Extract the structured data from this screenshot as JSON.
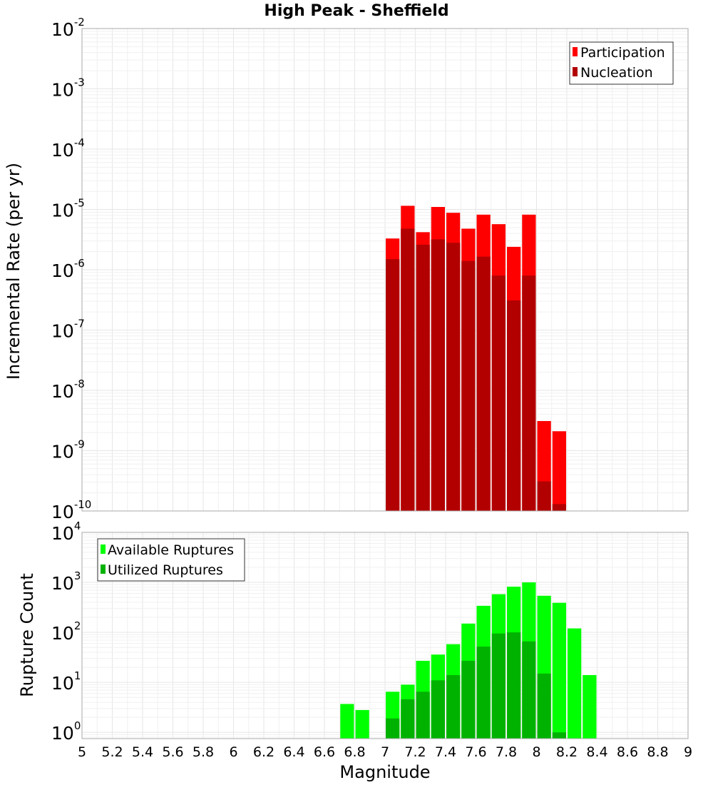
{
  "title": "High Peak - Sheffield",
  "chart_data": [
    {
      "type": "bar",
      "id": "rate",
      "ylabel": "Incremental Rate (per yr)",
      "yscale": "log",
      "ylim": [
        1e-10,
        0.01
      ],
      "xlim": [
        5,
        9
      ],
      "grid": true,
      "legend_position": "top-right",
      "x": [
        7.0,
        7.1,
        7.2,
        7.3,
        7.4,
        7.5,
        7.6,
        7.7,
        7.8,
        7.9,
        8.0,
        8.1
      ],
      "series": [
        {
          "name": "Participation",
          "color": "#ff0000",
          "values": [
            3.3e-06,
            1.15e-05,
            4.2e-06,
            1.1e-05,
            8.8e-06,
            4.8e-06,
            8.2e-06,
            5.7e-06,
            2.4e-06,
            8.2e-06,
            3.1e-09,
            2.1e-09
          ]
        },
        {
          "name": "Nucleation",
          "color": "#b20000",
          "values": [
            1.5e-06,
            4.8e-06,
            2.6e-06,
            3.2e-06,
            2.8e-06,
            1.4e-06,
            1.65e-06,
            8e-07,
            3.1e-07,
            8e-07,
            3.1e-10,
            1.3e-10
          ]
        }
      ]
    },
    {
      "type": "bar",
      "id": "count",
      "xlabel": "Magnitude",
      "ylabel": "Rupture Count",
      "yscale": "log",
      "ylim": [
        0.75,
        10000
      ],
      "xlim": [
        5,
        9
      ],
      "grid": true,
      "legend_position": "top-left",
      "x": [
        6.7,
        6.8,
        7.0,
        7.1,
        7.2,
        7.3,
        7.4,
        7.5,
        7.6,
        7.7,
        7.8,
        7.9,
        8.0,
        8.1,
        8.2,
        8.3
      ],
      "series": [
        {
          "name": "Available Ruptures",
          "color": "#00ff00",
          "values": [
            3.7,
            2.8,
            6.5,
            9,
            27,
            36,
            58,
            150,
            340,
            580,
            820,
            1000,
            540,
            390,
            120,
            14
          ]
        },
        {
          "name": "Utilized Ruptures",
          "color": "#00b200",
          "values": [
            0,
            0,
            1.9,
            4.6,
            6.5,
            11,
            14,
            27,
            52,
            95,
            100,
            66,
            15,
            1,
            0,
            0
          ]
        }
      ]
    }
  ],
  "xticks": [
    "5",
    "5.2",
    "5.4",
    "5.6",
    "5.8",
    "6",
    "6.2",
    "6.4",
    "6.6",
    "6.8",
    "7",
    "7.2",
    "7.4",
    "7.6",
    "7.8",
    "8",
    "8.2",
    "8.4",
    "8.6",
    "8.8",
    "9"
  ],
  "rate_yticks": [
    {
      "base": "10",
      "exp": "-2"
    },
    {
      "base": "10",
      "exp": "-3"
    },
    {
      "base": "10",
      "exp": "-4"
    },
    {
      "base": "10",
      "exp": "-5"
    },
    {
      "base": "10",
      "exp": "-6"
    },
    {
      "base": "10",
      "exp": "-7"
    },
    {
      "base": "10",
      "exp": "-8"
    },
    {
      "base": "10",
      "exp": "-9"
    },
    {
      "base": "10",
      "exp": "-10"
    }
  ],
  "count_yticks": [
    {
      "base": "10",
      "exp": "4"
    },
    {
      "base": "10",
      "exp": "3"
    },
    {
      "base": "10",
      "exp": "2"
    },
    {
      "base": "10",
      "exp": "1"
    },
    {
      "base": "10",
      "exp": "0"
    }
  ]
}
